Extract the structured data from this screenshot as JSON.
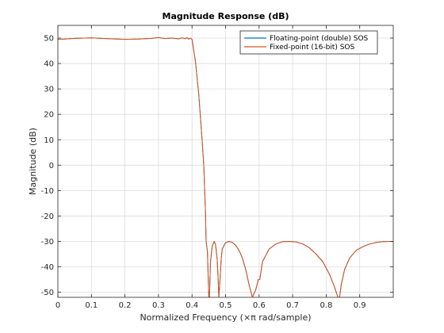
{
  "chart_data": {
    "type": "line",
    "title": "Magnitude Response (dB)",
    "xlabel": "Normalized Frequency (×π rad/sample)",
    "ylabel": "Magnitude (dB)",
    "xlim": [
      0,
      1
    ],
    "ylim": [
      -52,
      55
    ],
    "xticks": [
      0,
      0.1,
      0.2,
      0.3,
      0.4,
      0.5,
      0.6,
      0.7,
      0.8,
      0.9
    ],
    "xtick_labels": [
      "0",
      "0.1",
      "0.2",
      "0.3",
      "0.4",
      "0.5",
      "0.6",
      "0.7",
      "0.8",
      "0.9"
    ],
    "yticks": [
      -50,
      -40,
      -30,
      -20,
      -10,
      0,
      10,
      20,
      30,
      40,
      50
    ],
    "ytick_labels": [
      "-50",
      "-40",
      "-30",
      "-20",
      "-10",
      "0",
      "10",
      "20",
      "30",
      "40",
      "50"
    ],
    "grid": true,
    "legend_position": "top-right",
    "series": [
      {
        "name": "Floating-point (double) SOS",
        "color": "#0072BD",
        "x": [
          0,
          0.02,
          0.05,
          0.08,
          0.1,
          0.13,
          0.16,
          0.2,
          0.24,
          0.28,
          0.3,
          0.32,
          0.34,
          0.36,
          0.37,
          0.38,
          0.385,
          0.39,
          0.395,
          0.4,
          0.41,
          0.42,
          0.43,
          0.435,
          0.44,
          0.442,
          0.446,
          0.45,
          0.452,
          0.455,
          0.46,
          0.466,
          0.47,
          0.475,
          0.478,
          0.48,
          0.483,
          0.487,
          0.49,
          0.5,
          0.51,
          0.52,
          0.53,
          0.54,
          0.55,
          0.56,
          0.57,
          0.58,
          0.59,
          0.598,
          0.6,
          0.602,
          0.61,
          0.63,
          0.65,
          0.67,
          0.69,
          0.71,
          0.73,
          0.75,
          0.77,
          0.79,
          0.81,
          0.825,
          0.835,
          0.84,
          0.845,
          0.855,
          0.87,
          0.89,
          0.91,
          0.93,
          0.95,
          0.97,
          0.99,
          1.0
        ],
        "values": [
          49.5,
          49.6,
          49.9,
          50,
          50.1,
          49.9,
          49.7,
          49.5,
          49.6,
          49.9,
          50.2,
          49.8,
          50,
          49.7,
          50.1,
          49.8,
          50.2,
          49.6,
          50,
          49.5,
          41,
          28,
          10,
          0,
          -18,
          -30,
          -34,
          -52,
          -52,
          -38,
          -32,
          -30,
          -31,
          -37,
          -45,
          -52,
          -46,
          -37,
          -33,
          -30.5,
          -30,
          -30.4,
          -31.5,
          -33.5,
          -36.5,
          -41,
          -47,
          -52,
          -49,
          -45,
          -45,
          -45,
          -38,
          -33,
          -31,
          -30.1,
          -30,
          -30.2,
          -31,
          -32.5,
          -35,
          -38,
          -43,
          -48,
          -52,
          -52,
          -47,
          -41,
          -36.5,
          -33.5,
          -32,
          -31,
          -30.4,
          -30.1,
          -30,
          -30
        ]
      },
      {
        "name": "Fixed-point (16-bit) SOS",
        "color": "#D95319",
        "x": [
          0,
          0.02,
          0.05,
          0.08,
          0.1,
          0.13,
          0.16,
          0.2,
          0.24,
          0.28,
          0.3,
          0.32,
          0.34,
          0.36,
          0.37,
          0.38,
          0.385,
          0.39,
          0.395,
          0.4,
          0.41,
          0.42,
          0.43,
          0.435,
          0.44,
          0.442,
          0.446,
          0.45,
          0.452,
          0.455,
          0.46,
          0.466,
          0.47,
          0.475,
          0.478,
          0.48,
          0.483,
          0.487,
          0.49,
          0.5,
          0.51,
          0.52,
          0.53,
          0.54,
          0.55,
          0.56,
          0.57,
          0.58,
          0.59,
          0.598,
          0.6,
          0.602,
          0.61,
          0.63,
          0.65,
          0.67,
          0.69,
          0.71,
          0.73,
          0.75,
          0.77,
          0.79,
          0.81,
          0.825,
          0.835,
          0.84,
          0.845,
          0.855,
          0.87,
          0.89,
          0.91,
          0.93,
          0.95,
          0.97,
          0.99,
          1.0
        ],
        "values": [
          49.5,
          49.6,
          49.9,
          50,
          50.1,
          49.9,
          49.7,
          49.5,
          49.6,
          49.9,
          50.2,
          49.8,
          50,
          49.7,
          50.1,
          49.8,
          50.2,
          49.6,
          50,
          49.5,
          41,
          28,
          10,
          0,
          -18,
          -30,
          -34,
          -52,
          -52,
          -38,
          -32,
          -30,
          -31,
          -37,
          -45,
          -52,
          -46,
          -37,
          -33,
          -30.5,
          -30,
          -30.4,
          -31.5,
          -33.5,
          -36.5,
          -41,
          -47,
          -52,
          -49,
          -45,
          -45,
          -45,
          -38,
          -33,
          -31,
          -30.1,
          -30,
          -30.2,
          -31,
          -32.5,
          -35,
          -38,
          -43,
          -48,
          -52,
          -52,
          -47,
          -41,
          -36.5,
          -33.5,
          -32,
          -31,
          -30.4,
          -30.1,
          -30,
          -30
        ]
      }
    ]
  }
}
